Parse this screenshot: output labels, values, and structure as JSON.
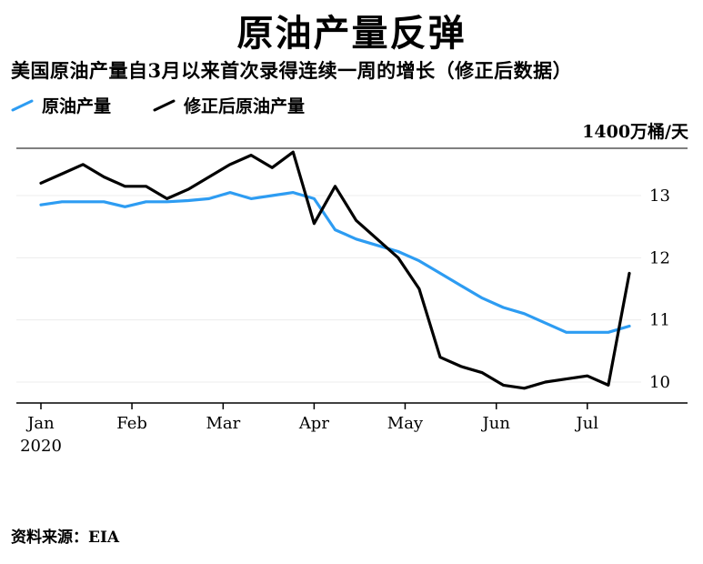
{
  "header": {
    "title": "原油产量反弹",
    "subtitle": "美国原油产量自3月以来首次录得连续一周的增长（修正后数据）"
  },
  "legend": [
    {
      "label": "原油产量",
      "color": "#2D9CF2"
    },
    {
      "label": "修正后原油产量",
      "color": "#000000"
    }
  ],
  "axis": {
    "unit_label": "1400万桶/天",
    "year_label": "2020"
  },
  "source": "资料来源：EIA",
  "chart_data": {
    "type": "line",
    "title": "原油产量反弹",
    "subtitle": "美国原油产量自3月以来首次录得连续一周的增长（修正后数据）",
    "unit_label": "1400万桶/天",
    "x_unit": "week-of-2020",
    "x": [
      0,
      1,
      2,
      3,
      4,
      5,
      6,
      7,
      8,
      9,
      10,
      11,
      12,
      13,
      14,
      15,
      16,
      17,
      18,
      19,
      20,
      21,
      22,
      23,
      24,
      25,
      26,
      27,
      28
    ],
    "series": [
      {
        "name": "原油产量",
        "color": "#2D9CF2",
        "values": [
          12.85,
          12.9,
          12.9,
          12.9,
          12.82,
          12.9,
          12.9,
          12.92,
          12.95,
          13.05,
          12.95,
          13.0,
          13.05,
          12.95,
          12.45,
          12.3,
          12.2,
          12.1,
          11.95,
          11.75,
          11.55,
          11.35,
          11.2,
          11.1,
          10.95,
          10.8,
          10.8,
          10.8,
          10.9
        ]
      },
      {
        "name": "修正后原油产量",
        "color": "#000000",
        "values": [
          13.2,
          13.35,
          13.5,
          13.3,
          13.15,
          13.15,
          12.95,
          13.1,
          13.3,
          13.5,
          13.65,
          13.45,
          13.7,
          12.55,
          13.15,
          12.6,
          12.3,
          12.0,
          11.5,
          10.4,
          10.25,
          10.15,
          9.95,
          9.9,
          10.0,
          10.05,
          10.1,
          9.95,
          11.75
        ]
      }
    ],
    "y_ticks": [
      13,
      12,
      11,
      10
    ],
    "ylim": [
      9.66,
      13.76
    ],
    "x_tick_labels": [
      "Jan",
      "Feb",
      "Mar",
      "Apr",
      "May",
      "Jun",
      "Jul"
    ],
    "x_tick_positions": [
      0,
      4.33,
      8.67,
      13,
      17.33,
      21.67,
      26
    ],
    "year_label": "2020",
    "grid": true,
    "legend_position": "top-left"
  }
}
